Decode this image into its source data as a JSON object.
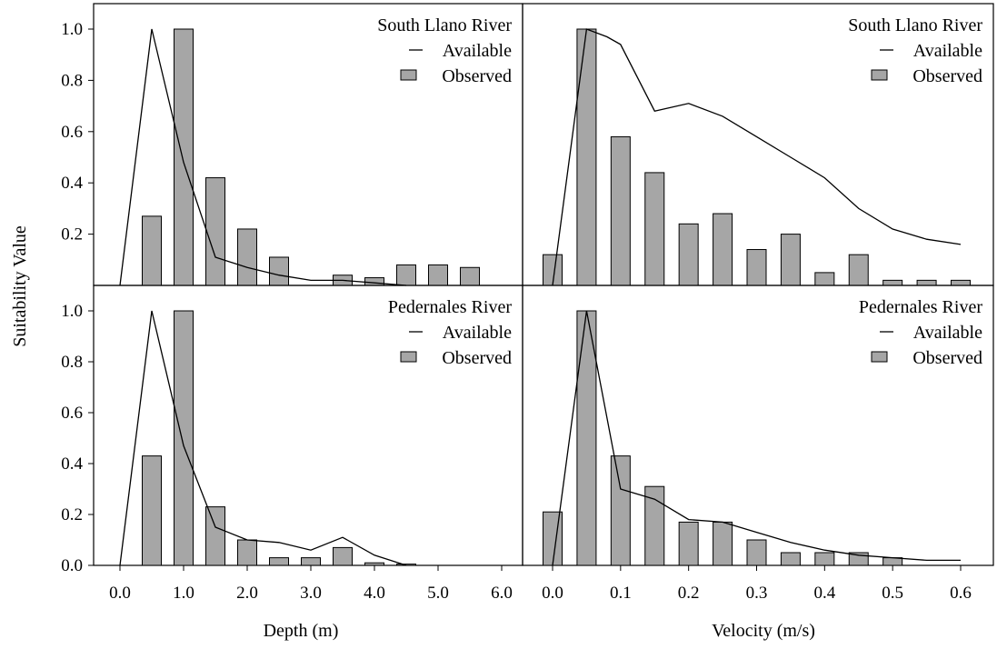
{
  "figure": {
    "ylabel": "Suitability Value",
    "xlabel_left": "Depth (m)",
    "xlabel_right": "Velocity (m/s)"
  },
  "chart_data": [
    {
      "type": "bar",
      "panel": "top-left",
      "title": "South Llano River",
      "legend": [
        "Available",
        "Observed"
      ],
      "legend_position": "top-right",
      "xlabel": "Depth (m)",
      "ylabel": "Suitability Value",
      "xlim": [
        0.0,
        6.0
      ],
      "ylim": [
        0,
        1.05
      ],
      "x_ticks": [
        "0.0",
        "1.0",
        "2.0",
        "3.0",
        "4.0",
        "5.0",
        "6.0"
      ],
      "y_ticks": [
        "0.2",
        "0.4",
        "0.6",
        "0.8",
        "1.0"
      ],
      "series": [
        {
          "name": "Observed",
          "kind": "bar",
          "x": [
            0.5,
            1.0,
            1.5,
            2.0,
            2.5,
            3.0,
            3.5,
            4.0,
            4.5,
            5.0,
            5.5
          ],
          "values": [
            0.27,
            1.0,
            0.42,
            0.22,
            0.11,
            0.0,
            0.04,
            0.03,
            0.08,
            0.08,
            0.07
          ]
        },
        {
          "name": "Available",
          "kind": "line",
          "x": [
            0.0,
            0.5,
            1.0,
            1.5,
            2.0,
            2.5,
            3.0,
            3.5,
            4.0,
            4.5
          ],
          "values": [
            0.0,
            1.0,
            0.48,
            0.11,
            0.07,
            0.04,
            0.02,
            0.02,
            0.01,
            0.0
          ]
        }
      ]
    },
    {
      "type": "bar",
      "panel": "top-right",
      "title": "South Llano River",
      "legend": [
        "Available",
        "Observed"
      ],
      "legend_position": "top-right",
      "xlabel": "Velocity (m/s)",
      "xlim": [
        -0.025,
        0.65
      ],
      "ylim": [
        0,
        1.05
      ],
      "x_ticks": [
        "0.0",
        "0.1",
        "0.2",
        "0.3",
        "0.4",
        "0.5",
        "0.6"
      ],
      "series": [
        {
          "name": "Observed",
          "kind": "bar",
          "x": [
            0.0,
            0.05,
            0.1,
            0.15,
            0.2,
            0.25,
            0.3,
            0.35,
            0.4,
            0.45,
            0.5,
            0.55,
            0.6
          ],
          "values": [
            0.12,
            1.0,
            0.58,
            0.44,
            0.24,
            0.28,
            0.14,
            0.2,
            0.05,
            0.12,
            0.02,
            0.02,
            0.02
          ]
        },
        {
          "name": "Available",
          "kind": "line",
          "x": [
            0.0,
            0.05,
            0.08,
            0.1,
            0.15,
            0.2,
            0.25,
            0.3,
            0.35,
            0.4,
            0.45,
            0.5,
            0.55,
            0.6
          ],
          "values": [
            0.0,
            1.0,
            0.97,
            0.94,
            0.68,
            0.71,
            0.66,
            0.58,
            0.5,
            0.42,
            0.3,
            0.22,
            0.18,
            0.16
          ]
        }
      ]
    },
    {
      "type": "bar",
      "panel": "bottom-left",
      "title": "Pedernales River",
      "legend": [
        "Available",
        "Observed"
      ],
      "legend_position": "top-right",
      "xlabel": "Depth (m)",
      "xlim": [
        0.0,
        6.0
      ],
      "ylim": [
        0,
        1.05
      ],
      "x_ticks": [
        "0.0",
        "1.0",
        "2.0",
        "3.0",
        "4.0",
        "5.0",
        "6.0"
      ],
      "y_ticks": [
        "0.0",
        "0.2",
        "0.4",
        "0.6",
        "0.8",
        "1.0"
      ],
      "series": [
        {
          "name": "Observed",
          "kind": "bar",
          "x": [
            0.5,
            1.0,
            1.5,
            2.0,
            2.5,
            3.0,
            3.5,
            4.0,
            4.5
          ],
          "values": [
            0.43,
            1.0,
            0.23,
            0.1,
            0.03,
            0.03,
            0.07,
            0.01,
            0.005
          ]
        },
        {
          "name": "Available",
          "kind": "line",
          "x": [
            0.0,
            0.5,
            1.0,
            1.5,
            2.0,
            2.5,
            3.0,
            3.5,
            4.0,
            4.5
          ],
          "values": [
            0.0,
            1.0,
            0.47,
            0.15,
            0.1,
            0.09,
            0.06,
            0.11,
            0.04,
            0.0
          ]
        }
      ]
    },
    {
      "type": "bar",
      "panel": "bottom-right",
      "title": "Pedernales River",
      "legend": [
        "Available",
        "Observed"
      ],
      "legend_position": "top-right",
      "xlabel": "Velocity (m/s)",
      "xlim": [
        -0.025,
        0.65
      ],
      "ylim": [
        0,
        1.05
      ],
      "x_ticks": [
        "0.0",
        "0.1",
        "0.2",
        "0.3",
        "0.4",
        "0.5",
        "0.6"
      ],
      "series": [
        {
          "name": "Observed",
          "kind": "bar",
          "x": [
            0.0,
            0.05,
            0.1,
            0.15,
            0.2,
            0.25,
            0.3,
            0.35,
            0.4,
            0.45,
            0.5
          ],
          "values": [
            0.21,
            1.0,
            0.43,
            0.31,
            0.17,
            0.17,
            0.1,
            0.05,
            0.05,
            0.05,
            0.03
          ]
        },
        {
          "name": "Available",
          "kind": "line",
          "x": [
            0.0,
            0.05,
            0.1,
            0.15,
            0.2,
            0.25,
            0.3,
            0.35,
            0.4,
            0.45,
            0.5,
            0.55,
            0.6
          ],
          "values": [
            0.0,
            1.0,
            0.3,
            0.26,
            0.18,
            0.17,
            0.13,
            0.09,
            0.06,
            0.04,
            0.03,
            0.02,
            0.02
          ]
        }
      ]
    }
  ]
}
